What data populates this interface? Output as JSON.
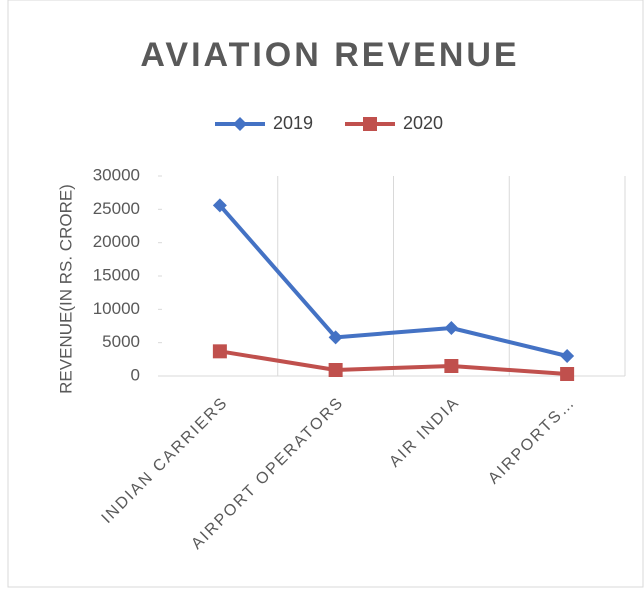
{
  "chart_data": {
    "type": "line",
    "title": "AVIATION REVENUE",
    "y_label": "REVENUE(IN RS. CRORE)",
    "categories": [
      "INDIAN CARRIERS",
      "AIRPORT OPERATORS",
      "AIR INDIA",
      "AIRPORTS…"
    ],
    "series": [
      {
        "name": "2019",
        "color": "#4472c4",
        "marker": "diamond",
        "values": [
          25600,
          5800,
          7200,
          3000
        ]
      },
      {
        "name": "2020",
        "color": "#c0504d",
        "marker": "square",
        "values": [
          3700,
          900,
          1500,
          300
        ]
      }
    ],
    "ylim": [
      0,
      30000
    ],
    "yticks": [
      0,
      5000,
      10000,
      15000,
      20000,
      25000,
      30000
    ],
    "legend": "top"
  }
}
